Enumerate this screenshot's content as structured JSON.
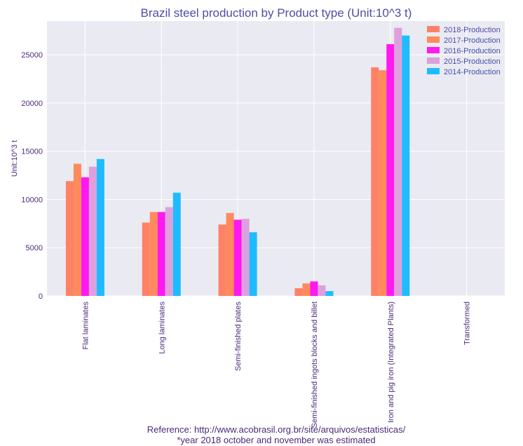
{
  "chart_data": {
    "type": "bar",
    "title": "Brazil steel production by Product type  (Unit:10^3 t)",
    "ylabel": "Unit:10^3 t",
    "xlabel": "",
    "ylim": [
      0,
      28500
    ],
    "yticks": [
      0,
      5000,
      10000,
      15000,
      20000,
      25000
    ],
    "grid": true,
    "legend_position": "top-right",
    "categories": [
      "Flat laminates",
      "Long laminates",
      "Semi-finished plates",
      "Semi-finished ingots blocks and billet",
      "Iron and pig iron (Integrated Plants)",
      "Transformed"
    ],
    "series": [
      {
        "name": "2018-Production",
        "color": "#ff8166",
        "values": [
          11900,
          7600,
          7400,
          800,
          23700,
          0
        ]
      },
      {
        "name": "2017-Production",
        "color": "#ff8a5c",
        "values": [
          13700,
          8700,
          8600,
          1300,
          23400,
          0
        ]
      },
      {
        "name": "2016-Production",
        "color": "#ff18ef",
        "values": [
          12300,
          8700,
          7900,
          1500,
          26100,
          0
        ]
      },
      {
        "name": "2015-Production",
        "color": "#dda0dd",
        "values": [
          13400,
          9200,
          8000,
          1100,
          27800,
          0
        ]
      },
      {
        "name": "2014-Production",
        "color": "#1ebcff",
        "values": [
          14200,
          10700,
          6600,
          500,
          27000,
          0
        ]
      }
    ]
  },
  "footer": {
    "reference": "Reference: http://www.acobrasil.org.br/site/arquivos/estatisticas/",
    "note": "*year 2018 october and november was estimated"
  }
}
